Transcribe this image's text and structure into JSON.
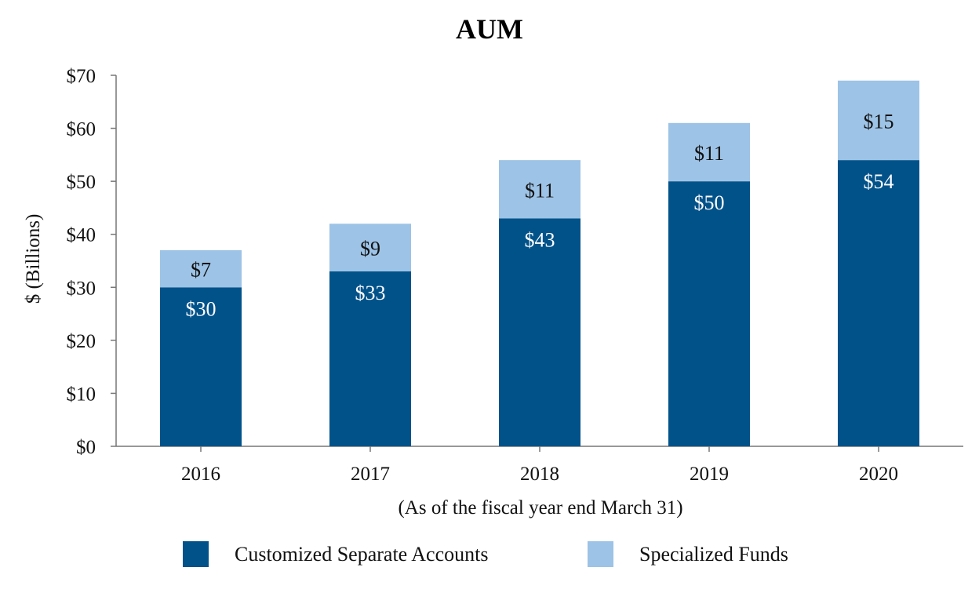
{
  "chart_data": {
    "type": "bar",
    "stacked": true,
    "title": "AUM",
    "xlabel": "(As of the fiscal year end March 31)",
    "ylabel": "$ (Billions)",
    "ylim": [
      0,
      70
    ],
    "yticks": [
      0,
      10,
      20,
      30,
      40,
      50,
      60,
      70
    ],
    "ytick_labels": [
      "$0",
      "$10",
      "$20",
      "$30",
      "$40",
      "$50",
      "$60",
      "$70"
    ],
    "categories": [
      "2016",
      "2017",
      "2018",
      "2019",
      "2020"
    ],
    "series": [
      {
        "name": "Customized Separate Accounts",
        "color": "#02528a",
        "label_color": "#ffffff",
        "values": [
          30,
          33,
          43,
          50,
          54
        ],
        "labels": [
          "$30",
          "$33",
          "$43",
          "$50",
          "$54"
        ]
      },
      {
        "name": "Specialized Funds",
        "color": "#9dc3e6",
        "label_color": "#111111",
        "values": [
          7,
          9,
          11,
          11,
          15
        ],
        "labels": [
          "$7",
          "$9",
          "$11",
          "$11",
          "$15"
        ]
      }
    ],
    "grid": false,
    "legend_position": "bottom"
  }
}
